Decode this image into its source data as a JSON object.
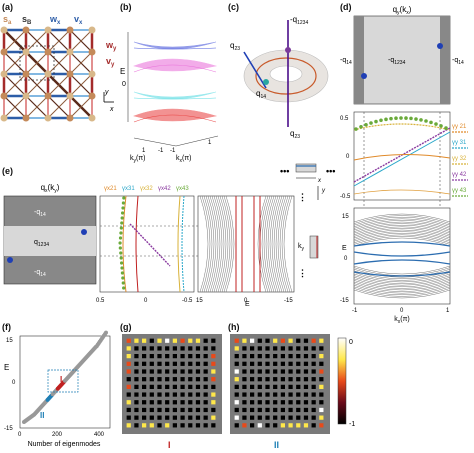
{
  "panels": {
    "a": "(a)",
    "b": "(b)",
    "c": "(c)",
    "d": "(d)",
    "e": "(e)",
    "f": "(f)",
    "g": "(g)",
    "h": "(h)"
  },
  "a": {
    "s_a": "s",
    "s_a_sub": "a",
    "s_b": "s",
    "s_b_sub": "B",
    "w_x": "w",
    "w_x_sub": "x",
    "v_x": "v",
    "v_x_sub": "x",
    "w_y": "w",
    "w_y_sub": "y",
    "v_y": "v",
    "v_y_sub": "y",
    "axis_y": "y",
    "axis_x": "x"
  },
  "b": {
    "ylabel": "E",
    "y_zero": "0",
    "xlabel_left": "k",
    "xlabel_left_sub": "y",
    "xlabel_left_unit": "(π)",
    "xlabel_right": "k",
    "xlabel_right_sub": "x",
    "xlabel_right_unit": "(π)",
    "ticks": [
      "1",
      "-1",
      "-1",
      "1"
    ]
  },
  "c": {
    "q1234": "-q",
    "q1234_sub": "1234",
    "q23_top": "q",
    "q23_top_sub": "23",
    "q14": "q",
    "q14_sub": "14",
    "q23_bot": "q",
    "q23_bot_sub": "23",
    "colors": {
      "torus_line": "#c85a2a",
      "axis": "#4b0f8a",
      "arrow": "#1f3fb5"
    }
  },
  "d": {
    "title": "q",
    "title_sub": "y",
    "title_kx": "(k",
    "title_kx_sub": "x",
    "title_close": ")",
    "left_region": "-q",
    "left_region_sub": "14",
    "center_region": "-q",
    "center_region_sub": "1234",
    "right_region": "-q",
    "right_region_sub": "14",
    "wilson_yticks": [
      "0.5",
      "0",
      "-0.5"
    ],
    "energy_ylabel": "E",
    "energy_yticks": [
      "15",
      "0",
      "-15"
    ],
    "xticks": [
      "-1",
      "0",
      "1"
    ],
    "xlabel": "k",
    "xlabel_sub": "x",
    "xlabel_unit": "(π)",
    "legend": [
      {
        "name": "γ",
        "sub": "y",
        "sup": "21",
        "color": "#e08a2a"
      },
      {
        "name": "γ",
        "sub": "y",
        "sup": "31",
        "color": "#2aa7c9"
      },
      {
        "name": "γ",
        "sub": "y",
        "sup": "32",
        "color": "#d8b23a"
      },
      {
        "name": "γ",
        "sub": "y",
        "sup": "42",
        "color": "#8a3aa0"
      },
      {
        "name": "γ",
        "sub": "y",
        "sup": "43",
        "color": "#6aaa3a"
      }
    ],
    "inset_axis": "x"
  },
  "e": {
    "title": "q",
    "title_sub": "x",
    "title_ky": "(k",
    "title_ky_sub": "y",
    "title_close": ")",
    "top_region": "-q",
    "top_region_sub": "14",
    "middle_region": "q",
    "middle_region_sub": "1234",
    "bottom_region": "-q",
    "bottom_region_sub": "14",
    "legend": [
      {
        "name": "γ",
        "sub": "x",
        "sup": "21",
        "color": "#e08a2a"
      },
      {
        "name": "γ",
        "sub": "x",
        "sup": "31",
        "color": "#2aa7c9"
      },
      {
        "name": "γ",
        "sub": "x",
        "sup": "32",
        "color": "#d8b23a"
      },
      {
        "name": "γ",
        "sub": "x",
        "sup": "42",
        "color": "#8a3aa0"
      },
      {
        "name": "γ",
        "sub": "x",
        "sup": "43",
        "color": "#6aaa3a"
      }
    ],
    "wilson_xticks": [
      "0.5",
      "0",
      "-0.5"
    ],
    "energy_xticks": [
      "15",
      "0",
      "-15"
    ],
    "energy_xlabel": "E",
    "ky_label": "k",
    "ky_sub": "y",
    "inset_axis": "y"
  },
  "f": {
    "ylabel": "E",
    "yticks": [
      "15",
      "0",
      "-15"
    ],
    "xticks": [
      "0",
      "200",
      "400"
    ],
    "xlabel": "Number of eigenmodes",
    "I": "I",
    "II": "II"
  },
  "g": {
    "label": "I"
  },
  "h": {
    "label": "II"
  },
  "colorbar": {
    "ticks": [
      "0",
      "-1"
    ]
  }
}
